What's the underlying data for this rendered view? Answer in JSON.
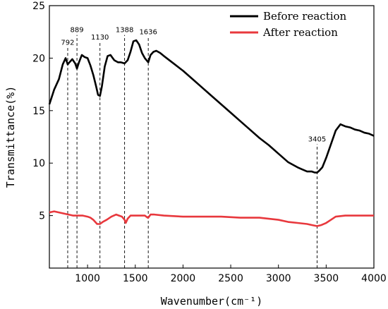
{
  "chart_data": {
    "type": "line",
    "title": "",
    "xlabel": "Wavenumber(cm⁻¹)",
    "ylabel": "Transmittance(%)",
    "xlim": [
      600,
      4000
    ],
    "ylim": [
      0,
      25
    ],
    "xticks": [
      1000,
      1500,
      2000,
      2500,
      3000,
      3500,
      4000
    ],
    "yticks": [
      5,
      10,
      15,
      20,
      25
    ],
    "grid": false,
    "legend": "top-right",
    "series": [
      {
        "name": "Before reaction",
        "color": "#000000",
        "x": [
          600,
          650,
          700,
          740,
          770,
          792,
          810,
          840,
          870,
          889,
          910,
          940,
          970,
          1000,
          1030,
          1060,
          1090,
          1110,
          1130,
          1150,
          1180,
          1210,
          1240,
          1280,
          1320,
          1350,
          1388,
          1420,
          1450,
          1480,
          1510,
          1540,
          1570,
          1600,
          1636,
          1660,
          1690,
          1720,
          1760,
          1800,
          1900,
          2000,
          2100,
          2200,
          2300,
          2400,
          2500,
          2600,
          2700,
          2800,
          2900,
          3000,
          3100,
          3200,
          3250,
          3300,
          3350,
          3380,
          3405,
          3430,
          3460,
          3500,
          3550,
          3600,
          3650,
          3700,
          3750,
          3800,
          3850,
          3900,
          3950,
          4000
        ],
        "y": [
          15.6,
          17.0,
          18.0,
          19.4,
          20.0,
          19.4,
          19.6,
          19.9,
          19.5,
          19.0,
          19.6,
          20.3,
          20.1,
          20.0,
          19.3,
          18.4,
          17.3,
          16.5,
          16.4,
          17.3,
          19.2,
          20.2,
          20.3,
          19.8,
          19.6,
          19.6,
          19.5,
          19.8,
          20.6,
          21.6,
          21.7,
          21.3,
          20.5,
          20.0,
          19.6,
          20.3,
          20.6,
          20.7,
          20.5,
          20.2,
          19.5,
          18.8,
          18.0,
          17.2,
          16.4,
          15.6,
          14.8,
          14.0,
          13.2,
          12.4,
          11.7,
          10.9,
          10.1,
          9.6,
          9.4,
          9.2,
          9.2,
          9.1,
          9.1,
          9.3,
          9.6,
          10.5,
          11.8,
          13.1,
          13.7,
          13.5,
          13.4,
          13.2,
          13.1,
          12.9,
          12.8,
          12.6
        ]
      },
      {
        "name": "After reaction",
        "color": "#e8383d",
        "x": [
          600,
          650,
          700,
          750,
          800,
          850,
          900,
          950,
          1000,
          1030,
          1060,
          1080,
          1100,
          1130,
          1160,
          1200,
          1250,
          1300,
          1330,
          1360,
          1388,
          1400,
          1420,
          1450,
          1500,
          1550,
          1600,
          1630,
          1636,
          1660,
          1700,
          1800,
          2000,
          2200,
          2400,
          2600,
          2800,
          2900,
          3000,
          3100,
          3200,
          3300,
          3350,
          3405,
          3450,
          3500,
          3550,
          3600,
          3700,
          3800,
          3900,
          4000
        ],
        "y": [
          5.3,
          5.4,
          5.3,
          5.2,
          5.1,
          5.0,
          5.0,
          5.0,
          4.9,
          4.8,
          4.6,
          4.4,
          4.2,
          4.2,
          4.4,
          4.6,
          4.9,
          5.1,
          5.0,
          4.9,
          4.6,
          4.3,
          4.7,
          5.0,
          5.0,
          5.0,
          5.0,
          4.8,
          4.8,
          5.1,
          5.1,
          5.0,
          4.9,
          4.9,
          4.9,
          4.8,
          4.8,
          4.7,
          4.6,
          4.4,
          4.3,
          4.2,
          4.1,
          4.0,
          4.1,
          4.3,
          4.6,
          4.9,
          5.0,
          5.0,
          5.0,
          5.0
        ]
      }
    ],
    "annotations": [
      {
        "label": "792",
        "x": 792,
        "y_top": 21.0
      },
      {
        "label": "889",
        "x": 889,
        "y_top": 22.2
      },
      {
        "label": "1130",
        "x": 1130,
        "y_top": 21.5
      },
      {
        "label": "1388",
        "x": 1388,
        "y_top": 22.2
      },
      {
        "label": "1636",
        "x": 1636,
        "y_top": 22.0
      },
      {
        "label": "3405",
        "x": 3405,
        "y_top": 11.8
      }
    ]
  }
}
